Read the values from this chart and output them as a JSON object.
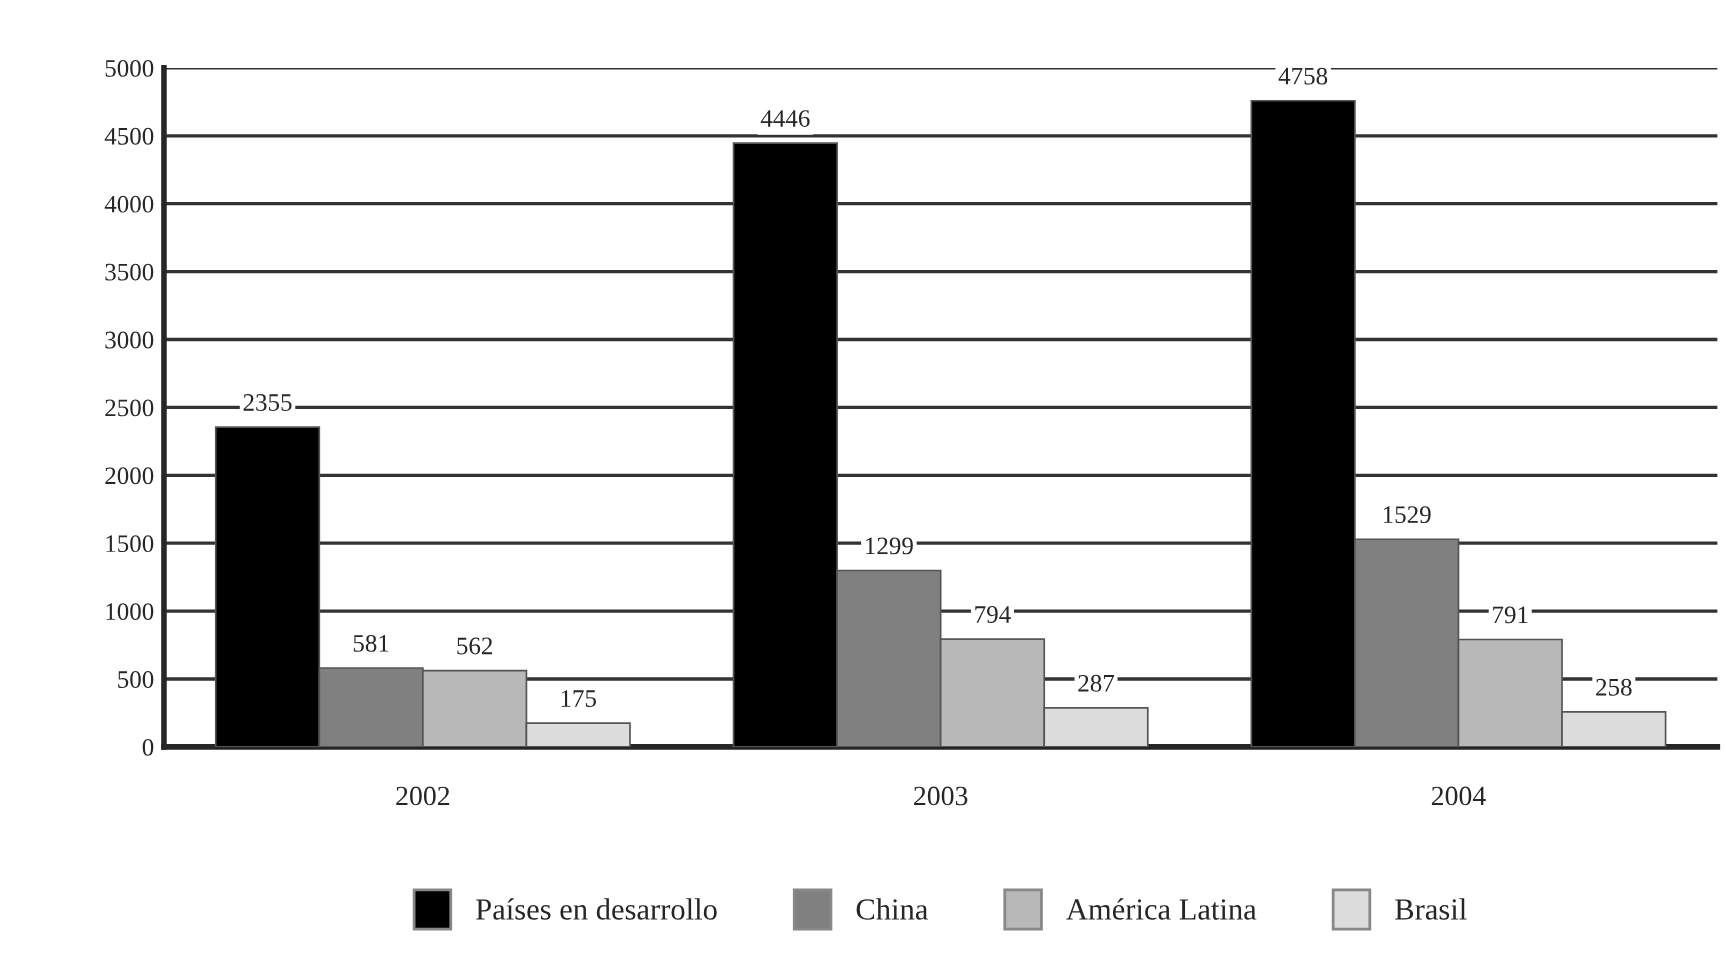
{
  "chart_data": {
    "type": "bar",
    "categories": [
      "2002",
      "2003",
      "2004"
    ],
    "series": [
      {
        "name": "Países en desarrollo",
        "color": "#000000",
        "values": [
          2355,
          4446,
          4758
        ]
      },
      {
        "name": "China",
        "color": "#808080",
        "values": [
          581,
          1299,
          1529
        ]
      },
      {
        "name": "América Latina",
        "color": "#b8b8b8",
        "values": [
          562,
          794,
          791
        ]
      },
      {
        "name": "Brasil",
        "color": "#dcdcdc",
        "values": [
          175,
          287,
          258
        ]
      }
    ],
    "ylim": [
      0,
      5000
    ],
    "yticks": [
      0,
      500,
      1000,
      1500,
      2000,
      2500,
      3000,
      3500,
      4000,
      4500,
      5000
    ],
    "grid": "y",
    "data_labels": true,
    "legend": "bottom"
  }
}
